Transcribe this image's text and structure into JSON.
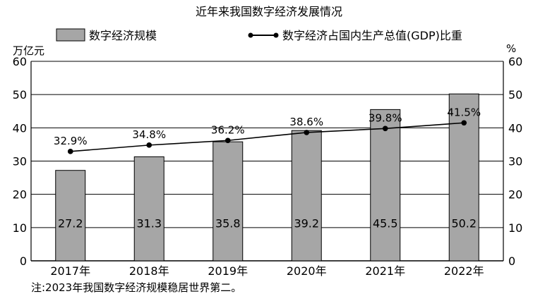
{
  "chart_data": {
    "type": "bar",
    "title": "近年来我国数字经济发展情况",
    "categories": [
      "2017年",
      "2018年",
      "2019年",
      "2020年",
      "2021年",
      "2022年"
    ],
    "series": [
      {
        "name": "数字经济规模",
        "type": "bar",
        "axis": "left",
        "values": [
          27.2,
          31.3,
          35.8,
          39.2,
          45.5,
          50.2
        ],
        "labels": [
          "27.2",
          "31.3",
          "35.8",
          "39.2",
          "45.5",
          "50.2"
        ],
        "color": "#a6a6a6"
      },
      {
        "name": "数字经济占国内生产总值(GDP)比重",
        "type": "line",
        "axis": "right",
        "values": [
          32.9,
          34.8,
          36.2,
          38.6,
          39.8,
          41.5
        ],
        "labels": [
          "32.9%",
          "34.8%",
          "36.2%",
          "38.6%",
          "39.8%",
          "41.5%"
        ],
        "color": "#000000"
      }
    ],
    "ylabel_left": "万亿元",
    "ylabel_right": "%",
    "ylim": [
      0,
      60
    ],
    "yticks": [
      "0",
      "10",
      "20",
      "30",
      "40",
      "50",
      "60"
    ],
    "grid": true,
    "legend_position": "top",
    "note": "注:2023年我国数字经济规模稳居世界第二。"
  }
}
